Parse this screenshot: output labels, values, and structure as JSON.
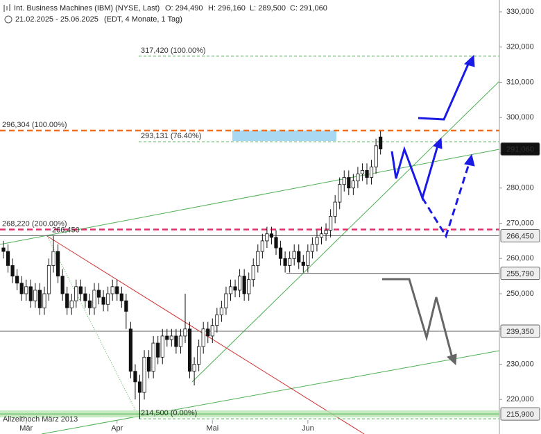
{
  "header": {
    "title": "Int. Business Machines (IBM) (NYSE, Last)",
    "open": "O: 294,490",
    "high": "H: 296,160",
    "low": "L: 289,500",
    "close": "C: 291,060",
    "range": "21.02.2025 - 25.06.2025",
    "range_note": "(EDT, 4 Monate, 1 Tag)"
  },
  "chart_data": {
    "type": "candlestick",
    "categories": [
      null,
      null,
      null,
      null,
      null,
      "Mär",
      null,
      null,
      null,
      null,
      null,
      null,
      null,
      null,
      null,
      null,
      null,
      null,
      null,
      null,
      null,
      null,
      null,
      null,
      null,
      "Apr",
      null,
      null,
      null,
      null,
      null,
      null,
      null,
      null,
      null,
      null,
      null,
      null,
      null,
      null,
      null,
      null,
      null,
      null,
      null,
      null,
      "Mai",
      null,
      null,
      null,
      null,
      null,
      null,
      null,
      null,
      null,
      null,
      null,
      null,
      null,
      null,
      null,
      null,
      null,
      null,
      null,
      null,
      "Jun",
      null,
      null,
      null,
      null,
      null,
      null,
      null,
      null,
      null,
      null,
      null,
      null,
      null,
      null,
      null,
      null
    ],
    "open": [
      263000,
      262000,
      258000,
      255000,
      253000,
      250000,
      252000,
      248000,
      251000,
      246000,
      250000,
      258000,
      262000,
      255000,
      250000,
      246000,
      248000,
      252000,
      250000,
      248000,
      246000,
      251000,
      249000,
      247000,
      250000,
      252000,
      250000,
      248000,
      240000,
      228000,
      225000,
      222000,
      232000,
      228000,
      236000,
      232000,
      238000,
      237000,
      238000,
      235000,
      238000,
      240000,
      228000,
      230000,
      235000,
      240000,
      238000,
      241000,
      244000,
      246000,
      250000,
      252000,
      251000,
      255000,
      250000,
      254000,
      258000,
      262000,
      265000,
      267000,
      266000,
      263000,
      260000,
      258000,
      260000,
      262000,
      259000,
      258000,
      262000,
      264000,
      266000,
      267000,
      268000,
      272000,
      276000,
      281000,
      283000,
      280000,
      282000,
      284000,
      285000,
      283000,
      286000,
      294490
    ],
    "high": [
      265000,
      264000,
      260000,
      257000,
      255000,
      254000,
      254000,
      253000,
      253000,
      252000,
      260000,
      266450,
      264000,
      257000,
      252000,
      250000,
      254000,
      254000,
      252000,
      250000,
      253000,
      253000,
      251000,
      252000,
      254000,
      254000,
      252000,
      250000,
      242000,
      230000,
      227000,
      234000,
      234000,
      238000,
      238000,
      240000,
      240000,
      240000,
      240000,
      240000,
      250000,
      242000,
      232000,
      237000,
      242000,
      242000,
      243000,
      246000,
      248000,
      252000,
      254000,
      254000,
      257000,
      257000,
      256000,
      260000,
      264000,
      267000,
      269000,
      269000,
      268000,
      265000,
      262000,
      262000,
      264000,
      264000,
      261000,
      264000,
      266000,
      268000,
      269000,
      270000,
      274000,
      278000,
      283000,
      285000,
      285000,
      284000,
      286000,
      287000,
      287000,
      288000,
      294000,
      296160
    ],
    "low": [
      260000,
      256000,
      253000,
      251000,
      248000,
      248000,
      246000,
      246000,
      244000,
      244000,
      248000,
      256000,
      253000,
      248000,
      244000,
      244000,
      246000,
      248000,
      246000,
      244000,
      244000,
      247000,
      245000,
      245000,
      248000,
      248000,
      246000,
      240000,
      226000,
      220000,
      214500,
      220000,
      226000,
      226000,
      230000,
      230000,
      235000,
      235000,
      233000,
      233000,
      236000,
      226000,
      224000,
      228000,
      233000,
      236000,
      236000,
      239000,
      242000,
      244000,
      248000,
      249000,
      249000,
      248000,
      248000,
      252000,
      256000,
      260000,
      263000,
      264000,
      261000,
      258000,
      256000,
      256000,
      258000,
      257000,
      256000,
      256000,
      260000,
      262000,
      264000,
      265000,
      266000,
      270000,
      274000,
      279000,
      278000,
      278000,
      280000,
      282000,
      281000,
      281000,
      284000,
      289500
    ],
    "close": [
      262000,
      258000,
      255000,
      253000,
      250000,
      252000,
      248000,
      251000,
      246000,
      250000,
      258000,
      262000,
      255000,
      250000,
      246000,
      248000,
      252000,
      250000,
      248000,
      246000,
      251000,
      249000,
      247000,
      250000,
      252000,
      250000,
      248000,
      245000,
      228000,
      225000,
      222000,
      232000,
      228000,
      236000,
      232000,
      238000,
      237000,
      238000,
      235000,
      238000,
      240000,
      228000,
      230000,
      235000,
      240000,
      238000,
      241000,
      244000,
      246000,
      250000,
      252000,
      251000,
      255000,
      250000,
      254000,
      258000,
      262000,
      265000,
      267000,
      266000,
      263000,
      260000,
      258000,
      260000,
      262000,
      259000,
      258000,
      262000,
      264000,
      266000,
      267000,
      268000,
      272000,
      276000,
      281000,
      283000,
      280000,
      282000,
      284000,
      285000,
      283000,
      286000,
      292000,
      291060
    ],
    "ylim": [
      210200,
      333350
    ],
    "yticks": [
      {
        "value": 220000,
        "label": "220,000"
      },
      {
        "value": 230000,
        "label": "230,000"
      },
      {
        "value": 240000,
        "label": "240,000"
      },
      {
        "value": 250000,
        "label": "250,000"
      },
      {
        "value": 260000,
        "label": "260,000"
      },
      {
        "value": 270000,
        "label": "270,000"
      },
      {
        "value": 280000,
        "label": "280,000"
      },
      {
        "value": 290000,
        "label": "290,000"
      },
      {
        "value": 300000,
        "label": "300,000"
      },
      {
        "value": 310000,
        "label": "310,000"
      },
      {
        "value": 320000,
        "label": "320,000"
      },
      {
        "value": 330000,
        "label": "330,000"
      }
    ],
    "levels": [
      {
        "value": 317420,
        "label": "317,420 (100.00%)",
        "color": "#4caf50"
      },
      {
        "value": 296304,
        "label": "296,304 (100.00%)",
        "color": "#f07020"
      },
      {
        "value": 293131,
        "label": "293,131 (76.40%)",
        "color": "#4caf50"
      },
      {
        "value": 268220,
        "label": "268,220 (200.00%)",
        "color": "#e0306a"
      },
      {
        "value": 266450,
        "label": "266,450",
        "color": "#666666"
      },
      {
        "value": 214500,
        "label": "214,500 (0.00%)",
        "color": "#4caf50"
      }
    ],
    "price_tags": [
      {
        "value": 291060,
        "label": "291,060"
      },
      {
        "value": 266450,
        "label": "266,450"
      },
      {
        "value": 255790,
        "label": "255,790"
      },
      {
        "value": 239350,
        "label": "239,350"
      },
      {
        "value": 215900,
        "label": "215,900"
      }
    ],
    "zone_label": "Allzeithoch März 2013"
  }
}
